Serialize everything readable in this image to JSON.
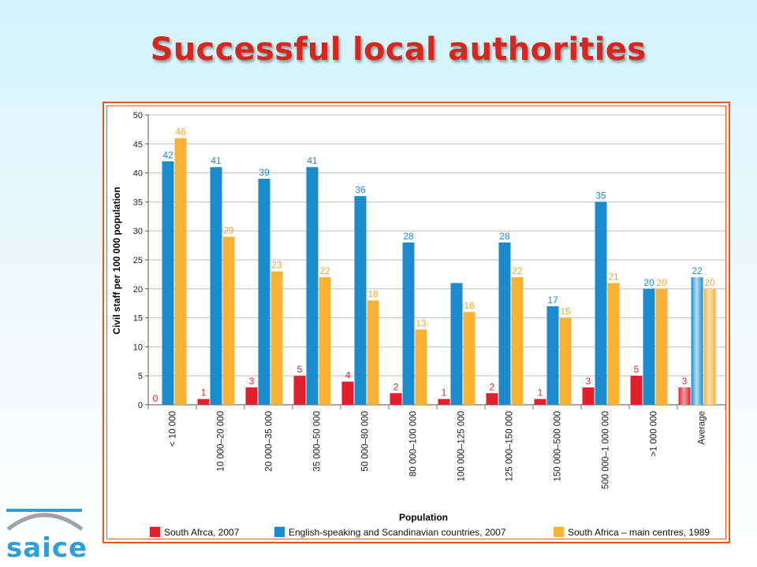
{
  "slide": {
    "title": "Successful local authorities",
    "logo_text": "saice"
  },
  "colors": {
    "series_1": "#e31e2d",
    "series_2": "#1a8bcd",
    "series_3": "#f9b233",
    "label_1": "#e31e2d",
    "label_2": "#1a8bcd",
    "label_3": "#f2a52e",
    "frame": "#e8591a",
    "grid": "#bdbdbd",
    "logo": "#2e9fd8"
  },
  "chart_data": {
    "type": "bar",
    "title": "",
    "xlabel": "Population",
    "ylabel": "Civil staff per 100 000 population",
    "ylim": [
      0,
      50
    ],
    "yticks": [
      0,
      5,
      10,
      15,
      20,
      25,
      30,
      35,
      40,
      45,
      50
    ],
    "grid": true,
    "legend_position": "bottom",
    "categories": [
      "< 10 000",
      "10 000–20 000",
      "20 000–35 000",
      "35 000–50 000",
      "50 000–80 000",
      "80 000–100 000",
      "100 000–125 000",
      "125 000–150 000",
      "150 000–500 000",
      "500 000–1 000 000",
      ">1 000 000",
      "Average"
    ],
    "series": [
      {
        "name": "South Afrca, 2007",
        "values": [
          0,
          1,
          3,
          5,
          4,
          2,
          1,
          2,
          1,
          3,
          5,
          3
        ],
        "labels": [
          "0",
          "1",
          "3",
          "5",
          "4",
          "2",
          "1",
          "2",
          "1",
          "3",
          "5",
          "3"
        ]
      },
      {
        "name": "English-speaking and Scandinavian countries, 2007",
        "values": [
          42,
          41,
          39,
          41,
          36,
          28,
          21,
          28,
          17,
          35,
          20,
          22
        ],
        "labels": [
          "42",
          "41",
          "39",
          "41",
          "36",
          "28",
          "",
          "28",
          "17",
          "35",
          "20",
          "22"
        ]
      },
      {
        "name": "South Africa – main centres, 1989",
        "values": [
          46,
          29,
          23,
          22,
          18,
          13,
          16,
          22,
          15,
          21,
          20,
          20
        ],
        "labels": [
          "46",
          "29",
          "23",
          "22",
          "18",
          "13",
          "16",
          "22",
          "15",
          "21",
          "20",
          "20"
        ]
      }
    ]
  }
}
